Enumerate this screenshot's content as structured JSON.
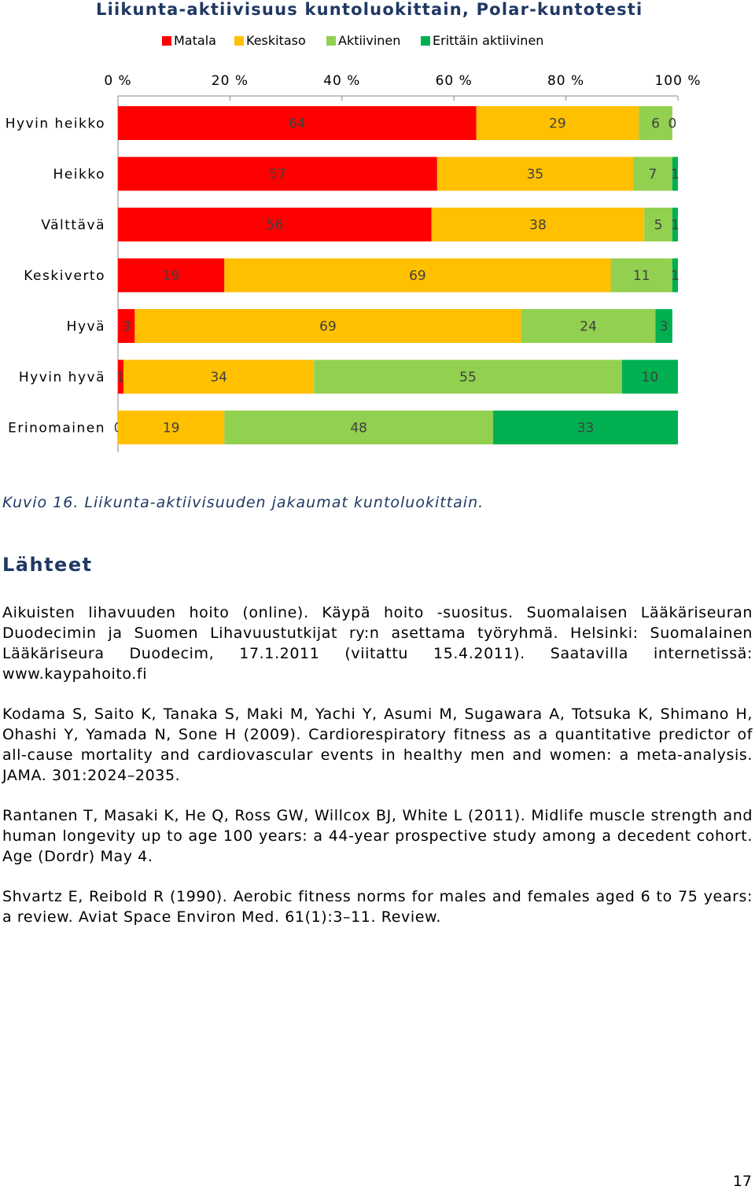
{
  "chart_data": {
    "type": "bar",
    "orientation": "horizontal",
    "stacked": true,
    "percent": true,
    "title": "Liikunta-aktiivisuus kuntoluokittain, Polar-kuntotesti",
    "categories": [
      "Hyvin heikko",
      "Heikko",
      "Välttävä",
      "Keskiverto",
      "Hyvä",
      "Hyvin hyvä",
      "Erinomainen"
    ],
    "series": [
      {
        "name": "Matala",
        "color": "#ff0000",
        "values": [
          64,
          57,
          56,
          19,
          3,
          1,
          0
        ]
      },
      {
        "name": "Keskitaso",
        "color": "#ffc000",
        "values": [
          29,
          35,
          38,
          69,
          69,
          34,
          19
        ]
      },
      {
        "name": "Aktiivinen",
        "color": "#92d050",
        "values": [
          6,
          7,
          5,
          11,
          24,
          55,
          48
        ]
      },
      {
        "name": "Erittäin aktiivinen",
        "color": "#00b050",
        "values": [
          0,
          1,
          1,
          1,
          3,
          10,
          33
        ]
      }
    ],
    "xticks": [
      "0 %",
      "20 %",
      "40 %",
      "60 %",
      "80 %",
      "100 %"
    ],
    "xlim": [
      0,
      100
    ],
    "legend_position": "top",
    "grid": false
  },
  "caption": "Kuvio 16. Liikunta-aktiivisuuden jakaumat kuntoluokittain.",
  "heading": "Lähteet",
  "references": [
    "Aikuisten lihavuuden hoito (online). Käypä hoito -suositus. Suomalaisen Lääkäriseuran Duodecimin ja Suomen Lihavuustutkijat ry:n asettama työryhmä. Helsinki: Suomalainen Lääkäriseura Duodecim, 17.1.2011 (viitattu 15.4.2011). Saatavilla internetissä: www.kaypahoito.fi",
    "Kodama S, Saito K, Tanaka S, Maki M, Yachi Y, Asumi M, Sugawara A, Totsuka K, Shimano H, Ohashi Y, Yamada N, Sone H (2009). Cardiorespiratory fitness as a quantitative predictor of all-cause mortality and cardiovascular events in healthy men and women: a meta-analysis. JAMA. 301:2024–2035.",
    "Rantanen T, Masaki K, He Q, Ross GW, Willcox BJ, White L (2011). Midlife muscle strength and human longevity up to age 100 years: a 44-year prospective study among a decedent cohort. Age (Dordr) May 4.",
    "Shvartz E, Reibold R (1990). Aerobic fitness norms for males and females aged 6 to 75 years: a review. Aviat Space Environ Med. 61(1):3–11. Review."
  ],
  "page_number": "17"
}
